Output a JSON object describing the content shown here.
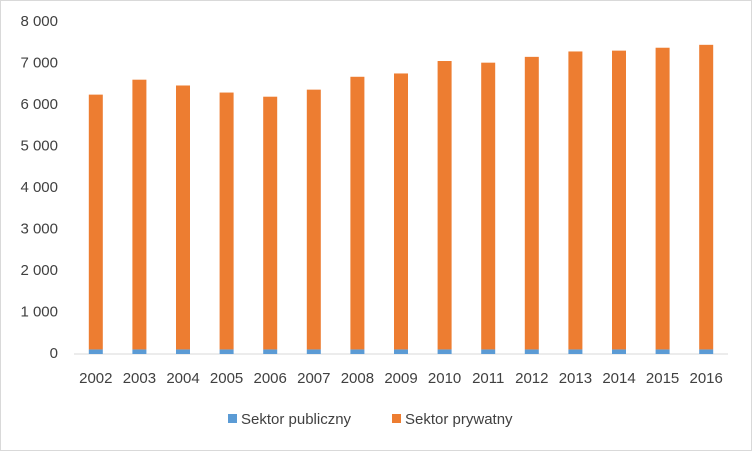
{
  "chart_data": {
    "type": "stacked_bar",
    "categories": [
      "2002",
      "2003",
      "2004",
      "2005",
      "2006",
      "2007",
      "2008",
      "2009",
      "2010",
      "2011",
      "2012",
      "2013",
      "2014",
      "2015",
      "2016"
    ],
    "series": [
      {
        "name": "Sektor publiczny",
        "color": "#5b9bd5",
        "values": [
          110,
          110,
          110,
          110,
          110,
          110,
          110,
          110,
          110,
          110,
          110,
          110,
          110,
          110,
          110
        ]
      },
      {
        "name": "Sektor prywatny",
        "color": "#ed7d31",
        "values": [
          6140,
          6500,
          6360,
          6190,
          6090,
          6260,
          6570,
          6650,
          6950,
          6910,
          7050,
          7180,
          7200,
          7270,
          7340
        ]
      }
    ],
    "ylim": [
      0,
      8000
    ],
    "yticks": [
      0,
      {
        "value": 1000,
        "label": "1 000"
      },
      {
        "value": 2000,
        "label": "2 000"
      },
      {
        "value": 3000,
        "label": "3 000"
      },
      {
        "value": 4000,
        "label": "4 000"
      },
      {
        "value": 5000,
        "label": "5 000"
      },
      {
        "value": 6000,
        "label": "6 000"
      },
      {
        "value": 7000,
        "label": "7 000"
      },
      {
        "value": 8000,
        "label": "8 000"
      }
    ],
    "grid": false,
    "legend": "bottom"
  }
}
